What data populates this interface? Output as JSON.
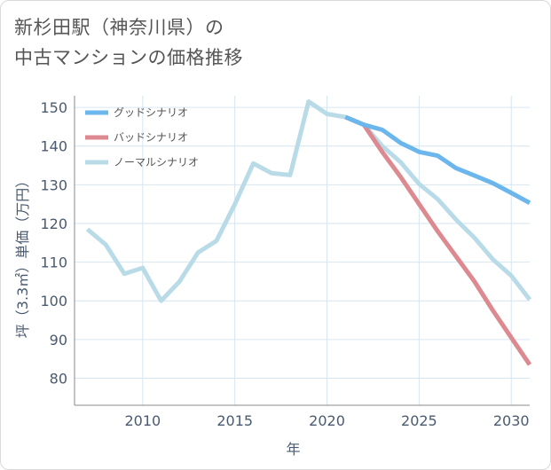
{
  "title_line1": "新杉田駅（神奈川県）の",
  "title_line2": "中古マンションの価格推移",
  "chart_data": {
    "type": "line",
    "xlabel": "年",
    "ylabel": "坪（3.3㎡）単価（万円）",
    "xlim": [
      2006.3,
      2031.0
    ],
    "ylim": [
      73,
      153
    ],
    "xticks": [
      2010,
      2015,
      2020,
      2025,
      2030
    ],
    "yticks": [
      80,
      90,
      100,
      110,
      120,
      130,
      140,
      150
    ],
    "legend_position": "top-left",
    "series": [
      {
        "name": "グッドシナリオ",
        "color": "#6bb6ec",
        "x": [
          2021,
          2022,
          2023,
          2024,
          2025,
          2026,
          2027,
          2028,
          2029,
          2030,
          2031
        ],
        "y": [
          147.5,
          145.5,
          144.2,
          140.8,
          138.5,
          137.5,
          134.3,
          132.4,
          130.4,
          127.9,
          125.3
        ]
      },
      {
        "name": "バッドシナリオ",
        "color": "#dc8a90",
        "x": [
          2021,
          2022,
          2023,
          2024,
          2025,
          2026,
          2027,
          2028,
          2029,
          2030,
          2031
        ],
        "y": [
          147.5,
          145.5,
          138.5,
          132.0,
          125.0,
          118.0,
          111.5,
          105.0,
          97.5,
          90.5,
          83.5
        ]
      },
      {
        "name": "ノーマルシナリオ",
        "color": "#b9dbe8",
        "x": [
          2007,
          2008,
          2009,
          2010,
          2011,
          2012,
          2013,
          2014,
          2015,
          2016,
          2017,
          2018,
          2019,
          2020,
          2021,
          2022,
          2023,
          2024,
          2025,
          2026,
          2027,
          2028,
          2029,
          2030,
          2031
        ],
        "y": [
          118.5,
          114.5,
          107.0,
          108.5,
          100.0,
          105.0,
          112.5,
          115.5,
          125.0,
          135.5,
          133.0,
          132.5,
          151.5,
          148.3,
          147.5,
          145.5,
          140.0,
          135.8,
          130.2,
          126.3,
          121.0,
          116.3,
          110.7,
          106.5,
          100.3
        ]
      }
    ]
  }
}
